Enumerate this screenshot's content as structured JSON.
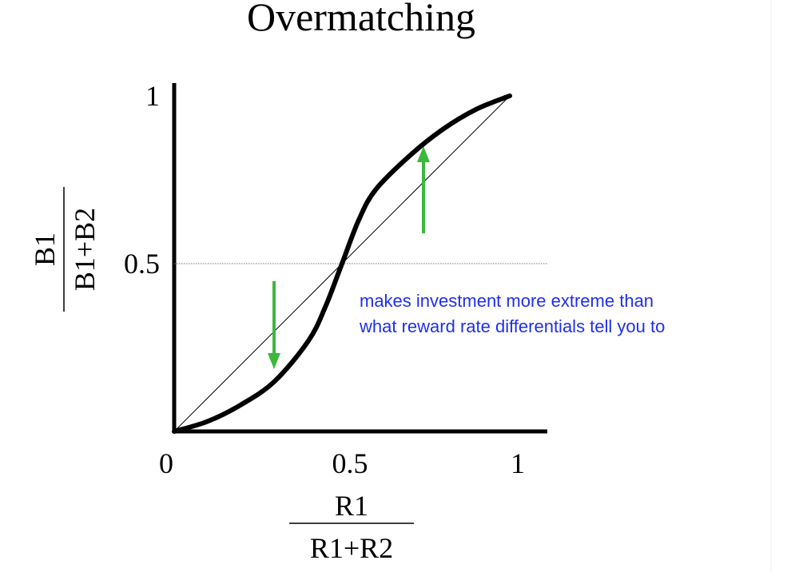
{
  "chart_data": {
    "type": "line",
    "title": "Overmatching",
    "x": [
      0,
      0.1,
      0.2,
      0.3,
      0.4,
      0.45,
      0.5,
      0.55,
      0.6,
      0.7,
      0.8,
      0.9,
      1
    ],
    "series": [
      {
        "color": "#000000",
        "values": [
          0,
          0.03,
          0.08,
          0.15,
          0.27,
          0.37,
          0.5,
          0.63,
          0.72,
          0.82,
          0.9,
          0.96,
          1
        ]
      }
    ],
    "xlim": [
      0,
      1.11
    ],
    "ylim": [
      0,
      1.04
    ],
    "xticks": [
      0,
      0.5,
      1
    ],
    "yticks": [
      0.5,
      1
    ],
    "xlabel": {
      "numerator": "R1",
      "denominator": "R1+R2"
    },
    "ylabel": {
      "numerator": "B1",
      "denominator": "B1+B2"
    },
    "annotation": [
      "makes investment more extreme than",
      "what reward rate differentials tell you to"
    ]
  }
}
